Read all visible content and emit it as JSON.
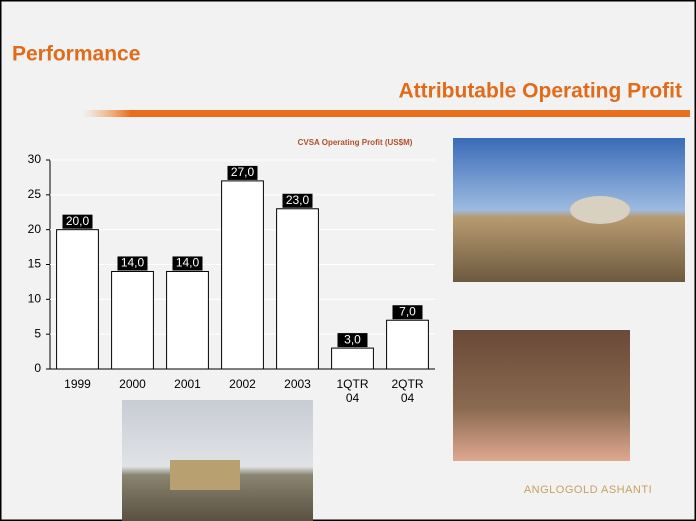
{
  "slide": {
    "title": "Performance",
    "subtitle": "Attributable Operating Profit",
    "logo": "ANGLOGOLD ASHANTI"
  },
  "chart_data": {
    "type": "bar",
    "title": "CVSA Operating Profit (US$M)",
    "categories": [
      "1999",
      "2000",
      "2001",
      "2002",
      "2003",
      "1QTR 04",
      "2QTR 04"
    ],
    "values": [
      20,
      14,
      14,
      27,
      23,
      3,
      7
    ],
    "value_labels": [
      "20,0",
      "14,0",
      "14,0",
      "27,0",
      "23,0",
      "3,0",
      "7,0"
    ],
    "color": "#ffffff",
    "ylim": [
      0,
      30
    ],
    "yticks": [
      0,
      5,
      10,
      15,
      20,
      25,
      30
    ],
    "grid": true
  }
}
